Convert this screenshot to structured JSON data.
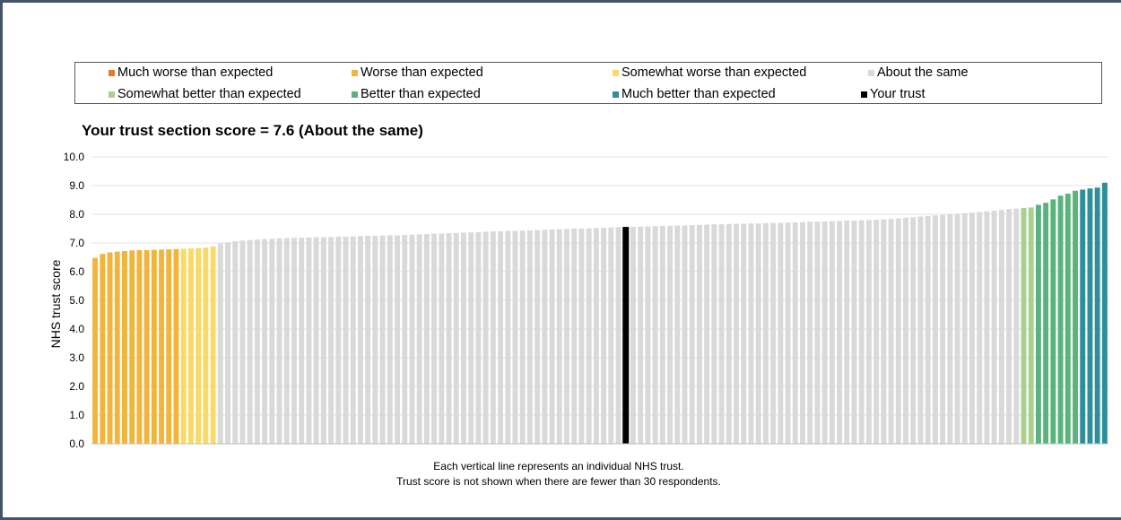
{
  "colors": {
    "much_worse": "#e8772e",
    "worse": "#f2b53c",
    "somewhat_worse": "#f9d967",
    "about_same": "#d9d9d9",
    "somewhat_better": "#a9d18e",
    "better": "#5bb37c",
    "much_better": "#2e8f98",
    "your_trust": "#000000"
  },
  "legend": [
    {
      "label": "Much worse than expected",
      "color_key": "much_worse"
    },
    {
      "label": "Worse than expected",
      "color_key": "worse"
    },
    {
      "label": "Somewhat worse than expected",
      "color_key": "somewhat_worse"
    },
    {
      "label": "About the same",
      "color_key": "about_same"
    },
    {
      "label": "Somewhat better than expected",
      "color_key": "somewhat_better"
    },
    {
      "label": "Better than expected",
      "color_key": "better"
    },
    {
      "label": "Much better than expected",
      "color_key": "much_better"
    },
    {
      "label": "Your trust",
      "color_key": "your_trust"
    }
  ],
  "title": "Your trust section score = 7.6 (About the same)",
  "notes": [
    "Each vertical line represents an individual NHS trust.",
    "Trust score is not shown when there are fewer than 30 respondents."
  ],
  "chart_data": {
    "type": "bar",
    "title": "Your trust section score = 7.6 (About the same)",
    "ylabel": "NHS trust score",
    "xlabel": "",
    "ylim": [
      0,
      10
    ],
    "yticks": [
      "0.0",
      "1.0",
      "2.0",
      "3.0",
      "4.0",
      "5.0",
      "6.0",
      "7.0",
      "8.0",
      "9.0",
      "10.0"
    ],
    "grid": true,
    "legend_position": "top",
    "your_trust_value": 7.6,
    "groups": [
      {
        "category": "worse",
        "values": [
          6.48,
          6.62,
          6.67,
          6.7,
          6.72,
          6.74,
          6.75,
          6.75,
          6.76,
          6.77,
          6.78,
          6.79
        ]
      },
      {
        "category": "somewhat_worse",
        "values": [
          6.8,
          6.81,
          6.82,
          6.84,
          6.88
        ]
      },
      {
        "category": "about_same",
        "values": [
          6.98,
          7.02,
          7.06,
          7.08,
          7.1,
          7.12,
          7.14,
          7.15,
          7.16,
          7.17,
          7.18,
          7.18,
          7.19,
          7.2,
          7.2,
          7.21,
          7.22,
          7.22,
          7.23,
          7.24,
          7.25,
          7.25,
          7.26,
          7.27,
          7.27,
          7.28,
          7.29,
          7.3,
          7.31,
          7.32,
          7.33,
          7.34,
          7.35,
          7.36,
          7.37,
          7.38,
          7.39,
          7.4,
          7.41,
          7.42,
          7.42,
          7.43,
          7.44,
          7.45,
          7.46,
          7.47,
          7.48,
          7.49,
          7.5,
          7.5,
          7.51,
          7.52,
          7.53,
          7.54,
          7.55
        ]
      },
      {
        "category": "your_trust",
        "values": [
          7.56
        ]
      },
      {
        "category": "about_same",
        "values": [
          7.56,
          7.57,
          7.58,
          7.59,
          7.6,
          7.6,
          7.61,
          7.61,
          7.62,
          7.63,
          7.64,
          7.65,
          7.65,
          7.66,
          7.67,
          7.67,
          7.68,
          7.68,
          7.69,
          7.7,
          7.7,
          7.71,
          7.72,
          7.73,
          7.74,
          7.74,
          7.75,
          7.76,
          7.77,
          7.78,
          7.78,
          7.79,
          7.8,
          7.81,
          7.82,
          7.84,
          7.86,
          7.88,
          7.9,
          7.92,
          7.94,
          7.96,
          7.98,
          8.0,
          8.02,
          8.04,
          8.06,
          8.08,
          8.1,
          8.12,
          8.15,
          8.18,
          8.2
        ]
      },
      {
        "category": "somewhat_better",
        "values": [
          8.22,
          8.24
        ]
      },
      {
        "category": "better",
        "values": [
          8.33,
          8.4,
          8.52,
          8.65,
          8.72,
          8.82
        ]
      },
      {
        "category": "much_better",
        "values": [
          8.86,
          8.9,
          8.93,
          9.1
        ]
      }
    ]
  }
}
